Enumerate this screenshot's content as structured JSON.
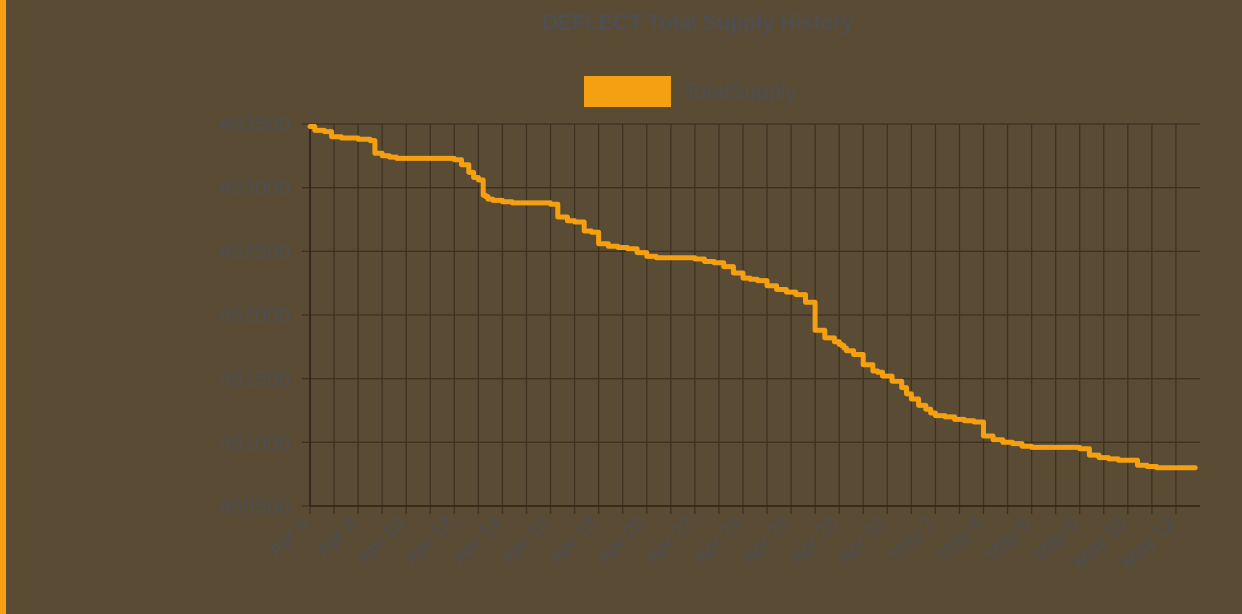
{
  "chart_data": {
    "type": "line",
    "title": "DEFLECT Total Supply History",
    "xlabel": "",
    "ylabel": "",
    "ylim": [
      460500,
      463500
    ],
    "y_ticks": [
      "463500",
      "463000",
      "462500",
      "462000",
      "461500",
      "461000",
      "460500"
    ],
    "x_ticks": [
      "Apr 6",
      "Apr 8",
      "Apr 10",
      "Apr 12",
      "Apr 14",
      "Apr 16",
      "Apr 18",
      "Apr 20",
      "Apr 22",
      "Apr 24",
      "Apr 26",
      "Apr 28",
      "Apr 30",
      "May 2",
      "May 4",
      "May 6",
      "May 8",
      "May 10",
      "May 12"
    ],
    "grid": true,
    "legend": "top-center",
    "series": [
      {
        "name": "TotalSupply",
        "color": "#f5a010",
        "x_days": [
          0,
          0.2,
          0.6,
          0.9,
          1.3,
          1.6,
          2.0,
          2.5,
          2.7,
          3.0,
          3.3,
          3.6,
          3.9,
          4.2,
          4.7,
          5.0,
          5.7,
          6.0,
          6.3,
          6.6,
          6.8,
          7.0,
          7.2,
          7.3,
          7.4,
          7.6,
          7.8,
          8.0,
          8.4,
          8.8,
          9.0,
          9.4,
          9.8,
          10.0,
          10.3,
          10.7,
          11.0,
          11.4,
          11.7,
          12.0,
          12.4,
          12.8,
          13.2,
          13.6,
          14.0,
          14.4,
          14.8,
          15.2,
          15.6,
          16.0,
          16.4,
          16.8,
          17.2,
          17.6,
          18.0,
          18.3,
          18.6,
          19.0,
          19.4,
          19.8,
          20.2,
          20.6,
          21.0,
          21.4,
          21.8,
          22.0,
          22.1,
          22.2,
          22.3,
          22.6,
          23.0,
          23.4,
          23.6,
          23.8,
          24.2,
          24.6,
          24.8,
          25.0,
          25.3,
          25.6,
          25.8,
          26.0,
          26.4,
          26.8,
          27.2,
          27.6,
          28.0,
          28.4,
          28.8,
          29.2,
          29.6,
          30.0,
          30.4,
          30.8,
          31.2,
          31.6,
          32.0,
          32.4,
          32.8,
          33.2,
          33.6,
          34.0,
          34.4,
          34.8,
          35.2,
          35.6,
          36.0,
          36.4,
          36.8
        ],
        "values": [
          463480,
          463450,
          463440,
          463400,
          463390,
          463390,
          463380,
          463370,
          463270,
          463250,
          463240,
          463230,
          463230,
          463230,
          463230,
          463230,
          463230,
          463220,
          463180,
          463120,
          463080,
          463060,
          462940,
          462930,
          462910,
          462900,
          462900,
          462890,
          462880,
          462880,
          462880,
          462880,
          462880,
          462870,
          462770,
          462740,
          462730,
          462660,
          462650,
          462560,
          462540,
          462530,
          462520,
          462490,
          462460,
          462450,
          462450,
          462450,
          462450,
          462440,
          462420,
          462410,
          462380,
          462330,
          462290,
          462280,
          462270,
          462230,
          462200,
          462180,
          462160,
          462100,
          461880,
          461820,
          461790,
          461770,
          461760,
          461740,
          461720,
          461690,
          461610,
          461560,
          461550,
          461520,
          461480,
          461430,
          461380,
          461340,
          461290,
          461260,
          461230,
          461210,
          461200,
          461180,
          461170,
          461160,
          461050,
          461020,
          461000,
          460990,
          460970,
          460960,
          460960,
          460960,
          460960,
          460960,
          460950,
          460900,
          460880,
          460870,
          460860,
          460860,
          460820,
          460810,
          460800,
          460800,
          460800,
          460800,
          460800
        ]
      }
    ]
  }
}
